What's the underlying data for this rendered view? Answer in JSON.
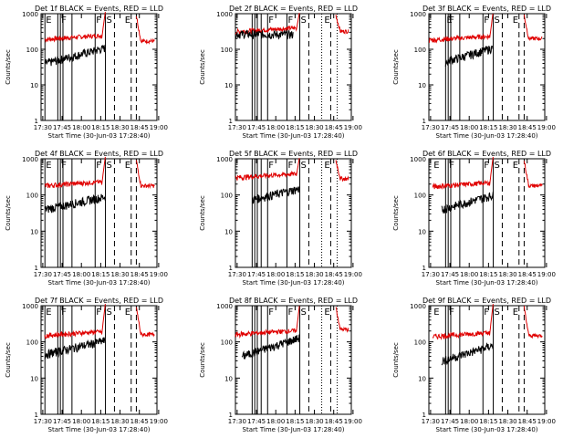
{
  "chart_data": [
    {
      "type": "line",
      "title": "Det 1f BLACK = Events, RED = LLD",
      "xlabel": "Start Time (30-Jun-03 17:28:40)",
      "ylabel": "Counts/sec",
      "x_ticks": [
        "17:30",
        "17:45",
        "18:00",
        "18:15",
        "18:30",
        "18:45",
        "19:00"
      ],
      "y_ticks": [
        "1",
        "10",
        "100",
        "1000"
      ],
      "ylim": [
        1,
        1000
      ],
      "xlim_minutes": [
        0,
        90
      ],
      "flags": [
        {
          "label": "E",
          "t": 3
        },
        {
          "label": "F",
          "t": 15
        },
        {
          "label": "F",
          "t": 42
        },
        {
          "label": "S",
          "t": 50
        }
      ],
      "flag_E2": {
        "label": "E",
        "t": 70
      },
      "solid_lines": [
        3,
        13,
        15,
        17,
        24,
        42,
        50
      ],
      "dashed_lines": [
        57,
        70,
        74
      ],
      "dotted_lines": [],
      "series": [
        {
          "name": "LLD",
          "color": "#e00000",
          "t_start": 3,
          "t_end": 50,
          "base": 190,
          "tail_to": 1200,
          "after_start": 74,
          "after_level": [
            900,
            170
          ]
        },
        {
          "name": "Events",
          "color": "#000000",
          "t_start": 3,
          "t_end": 50,
          "base": 40,
          "end_level": 110
        }
      ]
    },
    {
      "type": "line",
      "title": "Det 2f BLACK = Events, RED = LLD",
      "xlabel": "Start Time (30-Jun-03 17:28:40)",
      "ylabel": "Counts/sec",
      "x_ticks": [
        "17:30",
        "17:45",
        "18:00",
        "18:15",
        "18:30",
        "18:45",
        "19:00"
      ],
      "y_ticks": [
        "1",
        "10",
        "100",
        "1000"
      ],
      "ylim": [
        1,
        1000
      ],
      "xlim_minutes": [
        0,
        90
      ],
      "flags": [
        {
          "label": "F",
          "t": 25
        },
        {
          "label": "F",
          "t": 40
        },
        {
          "label": "S",
          "t": 50
        }
      ],
      "flag_E2": {
        "label": "E",
        "t": 74
      },
      "solid_lines": [
        13,
        15,
        17,
        20,
        25,
        40,
        50
      ],
      "dashed_lines": [
        57,
        74
      ],
      "dotted_lines": [
        67,
        79
      ],
      "series": [
        {
          "name": "LLD",
          "color": "#e00000",
          "t_start": 0,
          "t_end": 50,
          "base": 310,
          "tail_to": 1200,
          "after_start": 78,
          "after_level": [
            900,
            320
          ]
        },
        {
          "name": "Events",
          "color": "#000000",
          "t_start": 0,
          "t_end": 45,
          "base": 270,
          "end_level": 260
        }
      ]
    },
    {
      "type": "line",
      "title": "Det 3f BLACK = Events, RED = LLD",
      "xlabel": "Start Time (30-Jun-03 17:28:40)",
      "ylabel": "Counts/sec",
      "x_ticks": [
        "17:30",
        "17:45",
        "18:00",
        "18:15",
        "18:30",
        "18:45",
        "19:00"
      ],
      "y_ticks": [
        "1",
        "10",
        "100",
        "1000"
      ],
      "ylim": [
        1,
        1000
      ],
      "xlim_minutes": [
        0,
        90
      ],
      "flags": [
        {
          "label": "E",
          "t": 13
        },
        {
          "label": "F",
          "t": 15
        },
        {
          "label": "F",
          "t": 42
        },
        {
          "label": "S",
          "t": 50
        }
      ],
      "flag_E2": {
        "label": "E",
        "t": 70
      },
      "solid_lines": [
        13,
        15,
        17,
        24,
        42,
        50
      ],
      "dashed_lines": [
        57,
        70,
        74
      ],
      "dotted_lines": [],
      "series": [
        {
          "name": "LLD",
          "color": "#e00000",
          "t_start": 0,
          "t_end": 50,
          "base": 180,
          "tail_to": 1200,
          "after_start": 74,
          "after_level": [
            900,
            200
          ]
        },
        {
          "name": "Events",
          "color": "#000000",
          "t_start": 13,
          "t_end": 50,
          "base": 45,
          "end_level": 110
        }
      ]
    },
    {
      "type": "line",
      "title": "Det 4f BLACK = Events, RED = LLD",
      "xlabel": "Start Time (30-Jun-03 17:28:40)",
      "ylabel": "Counts/sec",
      "x_ticks": [
        "17:30",
        "17:45",
        "18:00",
        "18:15",
        "18:30",
        "18:45",
        "19:00"
      ],
      "y_ticks": [
        "1",
        "10",
        "100",
        "1000"
      ],
      "ylim": [
        1,
        1000
      ],
      "xlim_minutes": [
        0,
        90
      ],
      "flags": [
        {
          "label": "E",
          "t": 3
        },
        {
          "label": "F",
          "t": 15
        },
        {
          "label": "F",
          "t": 42
        },
        {
          "label": "S",
          "t": 50
        }
      ],
      "flag_E2": {
        "label": "E",
        "t": 70
      },
      "solid_lines": [
        3,
        13,
        15,
        17,
        24,
        42,
        50
      ],
      "dashed_lines": [
        57,
        70,
        74
      ],
      "dotted_lines": [],
      "series": [
        {
          "name": "LLD",
          "color": "#e00000",
          "t_start": 3,
          "t_end": 50,
          "base": 180,
          "tail_to": 1200,
          "after_start": 74,
          "after_level": [
            900,
            180
          ]
        },
        {
          "name": "Events",
          "color": "#000000",
          "t_start": 3,
          "t_end": 50,
          "base": 40,
          "end_level": 90
        }
      ]
    },
    {
      "type": "line",
      "title": "Det 5f BLACK = Events, RED = LLD",
      "xlabel": "Start Time (30-Jun-03 17:28:40)",
      "ylabel": "Counts/sec",
      "x_ticks": [
        "17:30",
        "17:45",
        "18:00",
        "18:15",
        "18:30",
        "18:45",
        "19:00"
      ],
      "y_ticks": [
        "1",
        "10",
        "100",
        "1000"
      ],
      "ylim": [
        1,
        1000
      ],
      "xlim_minutes": [
        0,
        90
      ],
      "flags": [
        {
          "label": "F",
          "t": 25
        },
        {
          "label": "F",
          "t": 40
        },
        {
          "label": "S",
          "t": 50
        }
      ],
      "flag_E2": {
        "label": "E",
        "t": 74
      },
      "solid_lines": [
        13,
        15,
        17,
        20,
        25,
        40,
        50
      ],
      "dashed_lines": [
        57,
        74
      ],
      "dotted_lines": [
        67,
        79
      ],
      "series": [
        {
          "name": "LLD",
          "color": "#e00000",
          "t_start": 0,
          "t_end": 50,
          "base": 300,
          "tail_to": 1200,
          "after_start": 78,
          "after_level": [
            900,
            280
          ]
        },
        {
          "name": "Events",
          "color": "#000000",
          "t_start": 13,
          "t_end": 50,
          "base": 75,
          "end_level": 150
        }
      ]
    },
    {
      "type": "line",
      "title": "Det 6f BLACK = Events, RED = LLD",
      "xlabel": "Start Time (30-Jun-03 17:28:40)",
      "ylabel": "Counts/sec",
      "x_ticks": [
        "17:30",
        "17:45",
        "18:00",
        "18:15",
        "18:30",
        "18:45",
        "19:00"
      ],
      "y_ticks": [
        "1",
        "10",
        "100",
        "1000"
      ],
      "ylim": [
        1,
        1000
      ],
      "xlim_minutes": [
        0,
        90
      ],
      "flags": [
        {
          "label": "E",
          "t": 3
        },
        {
          "label": "F",
          "t": 15
        },
        {
          "label": "F",
          "t": 42
        },
        {
          "label": "S",
          "t": 50
        }
      ],
      "flag_E2": {
        "label": "E",
        "t": 70
      },
      "solid_lines": [
        13,
        15,
        17,
        24,
        42,
        50
      ],
      "dashed_lines": [
        57,
        70,
        74
      ],
      "dotted_lines": [],
      "series": [
        {
          "name": "LLD",
          "color": "#e00000",
          "t_start": 3,
          "t_end": 50,
          "base": 170,
          "tail_to": 1200,
          "after_start": 74,
          "after_level": [
            900,
            180
          ]
        },
        {
          "name": "Events",
          "color": "#000000",
          "t_start": 10,
          "t_end": 50,
          "base": 40,
          "end_level": 100
        }
      ]
    },
    {
      "type": "line",
      "title": "Det 7f BLACK = Events, RED = LLD",
      "xlabel": "Start Time (30-Jun-03 17:28:40)",
      "ylabel": "Counts/sec",
      "x_ticks": [
        "17:30",
        "17:45",
        "18:00",
        "18:15",
        "18:30",
        "18:45",
        "19:00"
      ],
      "y_ticks": [
        "1",
        "10",
        "100",
        "1000"
      ],
      "ylim": [
        1,
        1000
      ],
      "xlim_minutes": [
        0,
        90
      ],
      "flags": [
        {
          "label": "E",
          "t": 3
        },
        {
          "label": "F",
          "t": 15
        },
        {
          "label": "F",
          "t": 42
        },
        {
          "label": "S",
          "t": 50
        }
      ],
      "flag_E2": {
        "label": "E",
        "t": 70
      },
      "solid_lines": [
        3,
        13,
        15,
        17,
        24,
        42,
        50
      ],
      "dashed_lines": [
        57,
        70,
        74
      ],
      "dotted_lines": [],
      "series": [
        {
          "name": "LLD",
          "color": "#e00000",
          "t_start": 3,
          "t_end": 50,
          "base": 150,
          "tail_to": 1200,
          "after_start": 74,
          "after_level": [
            900,
            160
          ]
        },
        {
          "name": "Events",
          "color": "#000000",
          "t_start": 3,
          "t_end": 50,
          "base": 45,
          "end_level": 110
        }
      ]
    },
    {
      "type": "line",
      "title": "Det 8f BLACK = Events, RED = LLD",
      "xlabel": "Start Time (30-Jun-03 17:28:40)",
      "ylabel": "Counts/sec",
      "x_ticks": [
        "17:30",
        "17:45",
        "18:00",
        "18:15",
        "18:30",
        "18:45",
        "19:00"
      ],
      "y_ticks": [
        "1",
        "10",
        "100",
        "1000"
      ],
      "ylim": [
        1,
        1000
      ],
      "xlim_minutes": [
        0,
        90
      ],
      "flags": [
        {
          "label": "F",
          "t": 25
        },
        {
          "label": "F",
          "t": 40
        },
        {
          "label": "S",
          "t": 50
        }
      ],
      "flag_E2": {
        "label": "E",
        "t": 74
      },
      "solid_lines": [
        13,
        15,
        17,
        20,
        25,
        40,
        50
      ],
      "dashed_lines": [
        57,
        74
      ],
      "dotted_lines": [
        67,
        79
      ],
      "series": [
        {
          "name": "LLD",
          "color": "#e00000",
          "t_start": 0,
          "t_end": 50,
          "base": 160,
          "tail_to": 1200,
          "after_start": 78,
          "after_level": [
            900,
            220
          ]
        },
        {
          "name": "Events",
          "color": "#000000",
          "t_start": 5,
          "t_end": 50,
          "base": 40,
          "end_level": 130
        }
      ]
    },
    {
      "type": "line",
      "title": "Det 9f BLACK = Events, RED = LLD",
      "xlabel": "Start Time (30-Jun-03 17:28:40)",
      "ylabel": "Counts/sec",
      "x_ticks": [
        "17:30",
        "17:45",
        "18:00",
        "18:15",
        "18:30",
        "18:45",
        "19:00"
      ],
      "y_ticks": [
        "1",
        "10",
        "100",
        "1000"
      ],
      "ylim": [
        1,
        1000
      ],
      "xlim_minutes": [
        0,
        90
      ],
      "flags": [
        {
          "label": "E",
          "t": 3
        },
        {
          "label": "F",
          "t": 15
        },
        {
          "label": "F",
          "t": 42
        },
        {
          "label": "S",
          "t": 50
        }
      ],
      "flag_E2": {
        "label": "E",
        "t": 70
      },
      "solid_lines": [
        13,
        15,
        17,
        24,
        42,
        50
      ],
      "dashed_lines": [
        57,
        70,
        74
      ],
      "dotted_lines": [],
      "series": [
        {
          "name": "LLD",
          "color": "#e00000",
          "t_start": 3,
          "t_end": 50,
          "base": 140,
          "tail_to": 1200,
          "after_start": 74,
          "after_level": [
            900,
            150
          ]
        },
        {
          "name": "Events",
          "color": "#000000",
          "t_start": 10,
          "t_end": 50,
          "base": 30,
          "end_level": 80
        }
      ]
    }
  ]
}
